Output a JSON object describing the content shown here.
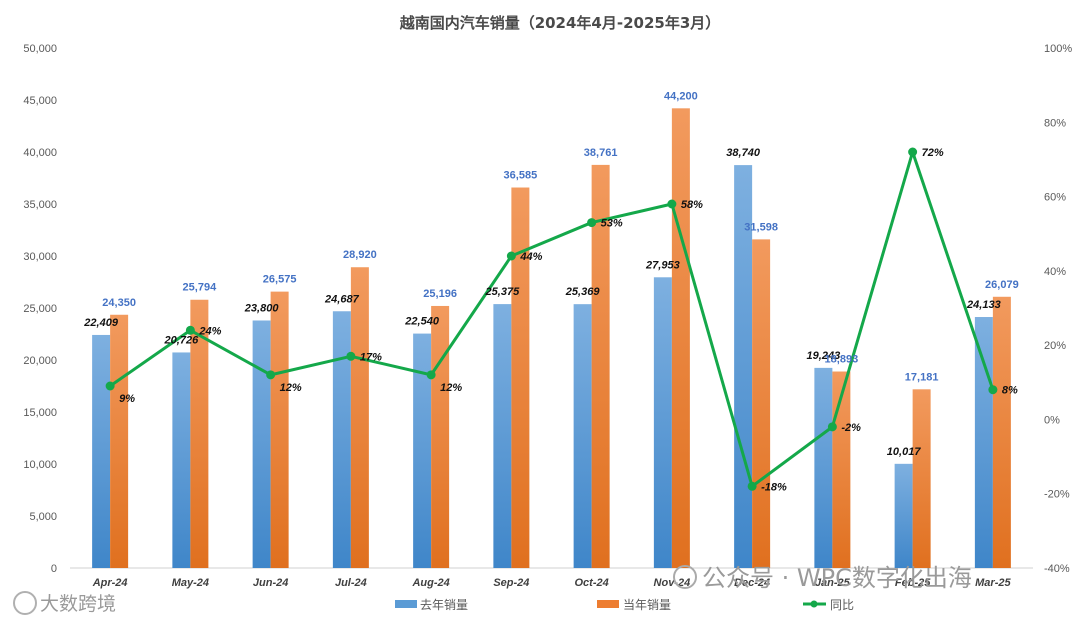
{
  "chart_data": {
    "type": "bar",
    "title": "越南国内汽车销量（2024年4月-2025年3月）",
    "categories": [
      "Apr-24",
      "May-24",
      "Jun-24",
      "Jul-24",
      "Aug-24",
      "Sep-24",
      "Oct-24",
      "Nov-24",
      "Dec-24",
      "Jan-25",
      "Feb-25",
      "Mar-25"
    ],
    "series": [
      {
        "name": "去年销量",
        "type": "bar",
        "axis": "left",
        "color": "#5b9bd5",
        "values": [
          22409,
          20726,
          23800,
          24687,
          22540,
          25375,
          25369,
          27953,
          38740,
          19243,
          10017,
          24133
        ],
        "labels": [
          "22,409",
          "20,726",
          "23,800",
          "24,687",
          "22,540",
          "25,375",
          "25,369",
          "27,953",
          "38,740",
          "19,243",
          "10,017",
          "24,133"
        ]
      },
      {
        "name": "当年销量",
        "type": "bar",
        "axis": "left",
        "color": "#ed7d31",
        "values": [
          24350,
          25794,
          26575,
          28920,
          25196,
          36585,
          38761,
          44200,
          31598,
          18893,
          17181,
          26079
        ],
        "labels": [
          "24,350",
          "25,794",
          "26,575",
          "28,920",
          "25,196",
          "36,585",
          "38,761",
          "44,200",
          "31,598",
          "18,893",
          "17,181",
          "26,079"
        ]
      },
      {
        "name": "同比",
        "type": "line",
        "axis": "right",
        "color": "#14a84a",
        "values": [
          9,
          24,
          12,
          17,
          12,
          44,
          53,
          58,
          -18,
          -2,
          72,
          8
        ],
        "labels": [
          "9%",
          "24%",
          "12%",
          "17%",
          "12%",
          "44%",
          "53%",
          "58%",
          "-18%",
          "-2%",
          "72%",
          "8%"
        ]
      }
    ],
    "ylim": [
      0,
      50000
    ],
    "yticks": [
      "0",
      "5,000",
      "10,000",
      "15,000",
      "20,000",
      "25,000",
      "30,000",
      "35,000",
      "40,000",
      "45,000",
      "50,000"
    ],
    "y2lim": [
      -40,
      100
    ],
    "y2ticks": [
      "-40%",
      "-20%",
      "0%",
      "20%",
      "40%",
      "60%",
      "80%",
      "100%"
    ],
    "grid": false,
    "legend_position": "bottom"
  },
  "watermarks": {
    "left": "大数跨境",
    "right": "公众号 · WPC数字化出海"
  }
}
